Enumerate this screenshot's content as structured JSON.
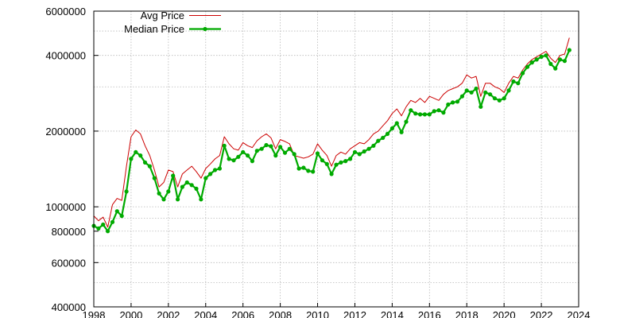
{
  "chart_data": {
    "type": "line",
    "title": "",
    "xlabel": "",
    "ylabel": "",
    "y_scale": "log",
    "xlim": [
      1998,
      2024
    ],
    "ylim": [
      400000,
      6000000
    ],
    "grid": true,
    "legend_position": "top-left",
    "x_ticks": [
      1998,
      2000,
      2002,
      2004,
      2006,
      2008,
      2010,
      2012,
      2014,
      2016,
      2018,
      2020,
      2022,
      2024
    ],
    "x_tick_labels": [
      "1998",
      "2000",
      "2002",
      "2004",
      "2006",
      "2008",
      "2010",
      "2012",
      "2014",
      "2016",
      "2018",
      "2020",
      "2022",
      "2024"
    ],
    "y_ticks": [
      400000,
      600000,
      800000,
      1000000,
      2000000,
      4000000,
      6000000
    ],
    "y_tick_labels": [
      "400000",
      "600000",
      "800000",
      "1000000",
      "2000000",
      "4000000",
      "6000000"
    ],
    "y_minor_grid": [
      500000,
      700000,
      900000,
      3000000,
      5000000
    ],
    "series": [
      {
        "name": "Avg Price",
        "color": "#cc0000",
        "marker": "none",
        "x": [
          1998.0,
          1998.25,
          1998.5,
          1998.75,
          1999.0,
          1999.25,
          1999.5,
          1999.75,
          2000.0,
          2000.25,
          2000.5,
          2000.75,
          2001.0,
          2001.25,
          2001.5,
          2001.75,
          2002.0,
          2002.25,
          2002.5,
          2002.75,
          2003.0,
          2003.25,
          2003.5,
          2003.75,
          2004.0,
          2004.25,
          2004.5,
          2004.75,
          2005.0,
          2005.25,
          2005.5,
          2005.75,
          2006.0,
          2006.25,
          2006.5,
          2006.75,
          2007.0,
          2007.25,
          2007.5,
          2007.75,
          2008.0,
          2008.25,
          2008.5,
          2008.75,
          2009.0,
          2009.25,
          2009.5,
          2009.75,
          2010.0,
          2010.25,
          2010.5,
          2010.75,
          2011.0,
          2011.25,
          2011.5,
          2011.75,
          2012.0,
          2012.25,
          2012.5,
          2012.75,
          2013.0,
          2013.25,
          2013.5,
          2013.75,
          2014.0,
          2014.25,
          2014.5,
          2014.75,
          2015.0,
          2015.25,
          2015.5,
          2015.75,
          2016.0,
          2016.25,
          2016.5,
          2016.75,
          2017.0,
          2017.25,
          2017.5,
          2017.75,
          2018.0,
          2018.25,
          2018.5,
          2018.75,
          2019.0,
          2019.25,
          2019.5,
          2019.75,
          2020.0,
          2020.25,
          2020.5,
          2020.75,
          2021.0,
          2021.25,
          2021.5,
          2021.75,
          2022.0,
          2022.25,
          2022.5,
          2022.75,
          2023.0,
          2023.25,
          2023.5
        ],
        "values": [
          920000,
          880000,
          910000,
          830000,
          1020000,
          1080000,
          1060000,
          1450000,
          1900000,
          2020000,
          1950000,
          1750000,
          1600000,
          1400000,
          1200000,
          1250000,
          1400000,
          1380000,
          1200000,
          1350000,
          1400000,
          1450000,
          1380000,
          1300000,
          1420000,
          1480000,
          1550000,
          1600000,
          1900000,
          1780000,
          1700000,
          1680000,
          1800000,
          1750000,
          1720000,
          1830000,
          1900000,
          1950000,
          1880000,
          1700000,
          1850000,
          1820000,
          1780000,
          1600000,
          1580000,
          1560000,
          1580000,
          1620000,
          1780000,
          1680000,
          1600000,
          1450000,
          1600000,
          1650000,
          1620000,
          1700000,
          1750000,
          1800000,
          1780000,
          1850000,
          1950000,
          2000000,
          2100000,
          2200000,
          2350000,
          2450000,
          2300000,
          2500000,
          2650000,
          2600000,
          2700000,
          2600000,
          2750000,
          2700000,
          2650000,
          2800000,
          2900000,
          2950000,
          3000000,
          3100000,
          3350000,
          3250000,
          3300000,
          2750000,
          3100000,
          3100000,
          3000000,
          2950000,
          2850000,
          3100000,
          3300000,
          3250000,
          3500000,
          3700000,
          3850000,
          3950000,
          4050000,
          4150000,
          3900000,
          3750000,
          4000000,
          4050000,
          4700000
        ]
      },
      {
        "name": "Median Price",
        "color": "#00aa00",
        "marker": "circle",
        "x": [
          1998.0,
          1998.25,
          1998.5,
          1998.75,
          1999.0,
          1999.25,
          1999.5,
          1999.75,
          2000.0,
          2000.25,
          2000.5,
          2000.75,
          2001.0,
          2001.25,
          2001.5,
          2001.75,
          2002.0,
          2002.25,
          2002.5,
          2002.75,
          2003.0,
          2003.25,
          2003.5,
          2003.75,
          2004.0,
          2004.25,
          2004.5,
          2004.75,
          2005.0,
          2005.25,
          2005.5,
          2005.75,
          2006.0,
          2006.25,
          2006.5,
          2006.75,
          2007.0,
          2007.25,
          2007.5,
          2007.75,
          2008.0,
          2008.25,
          2008.5,
          2008.75,
          2009.0,
          2009.25,
          2009.5,
          2009.75,
          2010.0,
          2010.25,
          2010.5,
          2010.75,
          2011.0,
          2011.25,
          2011.5,
          2011.75,
          2012.0,
          2012.25,
          2012.5,
          2012.75,
          2013.0,
          2013.25,
          2013.5,
          2013.75,
          2014.0,
          2014.25,
          2014.5,
          2014.75,
          2015.0,
          2015.25,
          2015.5,
          2015.75,
          2016.0,
          2016.25,
          2016.5,
          2016.75,
          2017.0,
          2017.25,
          2017.5,
          2017.75,
          2018.0,
          2018.25,
          2018.5,
          2018.75,
          2019.0,
          2019.25,
          2019.5,
          2019.75,
          2020.0,
          2020.25,
          2020.5,
          2020.75,
          2021.0,
          2021.25,
          2021.5,
          2021.75,
          2022.0,
          2022.25,
          2022.5,
          2022.75,
          2023.0,
          2023.25,
          2023.5
        ],
        "values": [
          840000,
          820000,
          850000,
          800000,
          870000,
          960000,
          920000,
          1150000,
          1550000,
          1650000,
          1600000,
          1500000,
          1450000,
          1300000,
          1130000,
          1070000,
          1150000,
          1330000,
          1070000,
          1200000,
          1250000,
          1220000,
          1180000,
          1070000,
          1300000,
          1350000,
          1400000,
          1420000,
          1750000,
          1550000,
          1530000,
          1580000,
          1650000,
          1600000,
          1520000,
          1670000,
          1700000,
          1760000,
          1740000,
          1600000,
          1730000,
          1640000,
          1700000,
          1620000,
          1420000,
          1430000,
          1390000,
          1380000,
          1630000,
          1530000,
          1480000,
          1350000,
          1470000,
          1500000,
          1520000,
          1550000,
          1650000,
          1620000,
          1660000,
          1700000,
          1750000,
          1830000,
          1880000,
          1950000,
          2050000,
          2150000,
          1980000,
          2180000,
          2420000,
          2350000,
          2330000,
          2330000,
          2330000,
          2400000,
          2420000,
          2370000,
          2550000,
          2600000,
          2620000,
          2750000,
          2900000,
          2850000,
          2950000,
          2500000,
          2850000,
          2800000,
          2700000,
          2650000,
          2700000,
          2900000,
          3150000,
          3100000,
          3400000,
          3600000,
          3750000,
          3850000,
          3950000,
          4000000,
          3700000,
          3550000,
          3850000,
          3800000,
          4200000
        ]
      }
    ]
  }
}
